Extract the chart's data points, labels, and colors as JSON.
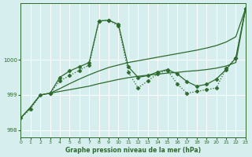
{
  "xlabel": "Graphe pression niveau de la mer (hPa)",
  "background_color": "#d6eeee",
  "grid_color": "#ffffff",
  "line_color": "#2d6a2d",
  "xlim": [
    0,
    23
  ],
  "ylim": [
    997.8,
    1001.6
  ],
  "y_ticks": [
    998,
    999,
    1000
  ],
  "series": [
    {
      "x": [
        0,
        1,
        2,
        3,
        4,
        5,
        6,
        7,
        8,
        9,
        10,
        11,
        12,
        13,
        14,
        15,
        16,
        17,
        18,
        19,
        20,
        21,
        22,
        23
      ],
      "y": [
        998.35,
        998.6,
        999.0,
        999.05,
        999.4,
        999.55,
        999.7,
        999.85,
        1001.1,
        1001.12,
        1000.95,
        999.65,
        999.2,
        999.4,
        999.6,
        999.7,
        999.32,
        999.05,
        999.1,
        999.15,
        999.2,
        999.75,
        1000.05,
        1001.45
      ],
      "style": "dotted",
      "marker": "D",
      "markersize": 2.5,
      "linewidth": 0.9
    },
    {
      "x": [
        3,
        4,
        5,
        6,
        7,
        8,
        9,
        10,
        11,
        12,
        13,
        14,
        15,
        16,
        17,
        18,
        19,
        20,
        21,
        22,
        23
      ],
      "y": [
        999.05,
        999.5,
        999.68,
        999.8,
        999.92,
        1001.1,
        1001.12,
        1001.0,
        999.8,
        999.5,
        999.55,
        999.65,
        999.72,
        999.6,
        999.38,
        999.25,
        999.3,
        999.45,
        999.72,
        1000.05,
        1001.45
      ],
      "style": "solid",
      "marker": "D",
      "markersize": 2.5,
      "linewidth": 0.9
    },
    {
      "x": [
        0,
        1,
        2,
        3,
        4,
        5,
        6,
        7,
        8,
        9,
        10,
        11,
        12,
        13,
        14,
        15,
        16,
        17,
        18,
        19,
        20,
        21,
        22,
        23
      ],
      "y": [
        998.35,
        998.65,
        999.0,
        999.05,
        999.18,
        999.32,
        999.45,
        999.57,
        999.68,
        999.78,
        999.85,
        999.92,
        999.97,
        1000.02,
        1000.07,
        1000.12,
        1000.17,
        1000.22,
        1000.27,
        1000.33,
        1000.4,
        1000.5,
        1000.65,
        1001.45
      ],
      "style": "solid",
      "marker": null,
      "markersize": 0,
      "linewidth": 0.9
    },
    {
      "x": [
        0,
        1,
        2,
        3,
        4,
        5,
        6,
        7,
        8,
        9,
        10,
        11,
        12,
        13,
        14,
        15,
        16,
        17,
        18,
        19,
        20,
        21,
        22,
        23
      ],
      "y": [
        998.35,
        998.65,
        999.0,
        999.05,
        999.1,
        999.15,
        999.2,
        999.25,
        999.32,
        999.38,
        999.44,
        999.49,
        999.53,
        999.56,
        999.59,
        999.62,
        999.64,
        999.67,
        999.69,
        999.72,
        999.76,
        999.82,
        999.92,
        1001.45
      ],
      "style": "solid",
      "marker": null,
      "markersize": 0,
      "linewidth": 0.9
    }
  ]
}
